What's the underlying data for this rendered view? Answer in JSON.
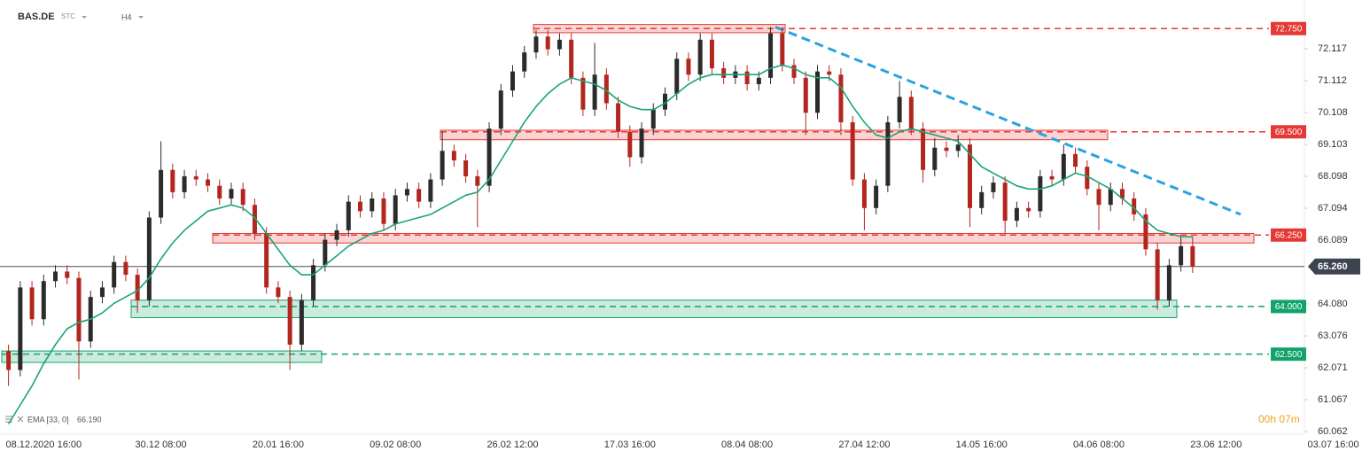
{
  "chart_data": {
    "type": "candlestick",
    "symbol": "BAS.DE",
    "market": "STC",
    "interval": "H4",
    "countdown": "00h 07m",
    "ylim": [
      59.98,
      73.65
    ],
    "yticks": [
      72.117,
      71.112,
      70.108,
      69.103,
      68.098,
      67.094,
      66.089,
      {
        "value": 64.08,
        "label": "64.080"
      },
      63.076,
      62.071,
      61.067,
      60.062
    ],
    "categories": [
      null,
      null,
      null,
      "08.12.2020 16:00",
      null,
      null,
      null,
      null,
      null,
      null,
      null,
      null,
      null,
      "30.12 08:00",
      null,
      null,
      null,
      null,
      null,
      null,
      null,
      null,
      null,
      "20.01 16:00",
      null,
      null,
      null,
      null,
      null,
      null,
      null,
      null,
      null,
      "09.02 08:00",
      null,
      null,
      null,
      null,
      null,
      null,
      null,
      null,
      null,
      "26.02 12:00",
      null,
      null,
      null,
      null,
      null,
      null,
      null,
      null,
      null,
      "17.03 16:00",
      null,
      null,
      null,
      null,
      null,
      null,
      null,
      null,
      null,
      "08.04 08:00",
      null,
      null,
      null,
      null,
      null,
      null,
      null,
      null,
      null,
      "27.04 12:00",
      null,
      null,
      null,
      null,
      null,
      null,
      null,
      null,
      null,
      "14.05 16:00",
      null,
      null,
      null,
      null,
      null,
      null,
      null,
      null,
      null,
      "04.06 08:00",
      null,
      null,
      null,
      null,
      null,
      null,
      null,
      null,
      null,
      "23.06 12:00",
      null,
      null,
      null,
      null,
      null,
      null,
      null,
      null,
      null,
      "03.07 16:00"
    ],
    "up_color": "#2b2b2b",
    "down_color": "#b3261e",
    "open": [
      62.6,
      62.0,
      64.6,
      63.6,
      64.8,
      65.1,
      64.9,
      62.9,
      64.3,
      64.6,
      65.4,
      65.0,
      64.2,
      66.8,
      68.3,
      67.6,
      68.1,
      68.0,
      67.8,
      67.4,
      67.7,
      67.2,
      66.3,
      64.6,
      64.3,
      62.8,
      64.2,
      65.3,
      66.1,
      66.4,
      67.3,
      67.0,
      67.4,
      66.6,
      67.5,
      67.7,
      67.3,
      68.0,
      68.9,
      68.6,
      68.1,
      67.8,
      69.6,
      70.8,
      71.4,
      72.0,
      72.5,
      72.1,
      72.4,
      71.2,
      70.2,
      71.3,
      70.4,
      69.5,
      68.7,
      69.6,
      70.2,
      70.7,
      71.8,
      71.3,
      72.4,
      71.5,
      71.2,
      71.4,
      71.0,
      71.2,
      72.6,
      71.6,
      71.2,
      70.1,
      71.4,
      71.3,
      69.8,
      68.0,
      67.1,
      67.8,
      69.8,
      70.6,
      69.6,
      68.3,
      69.0,
      68.9,
      69.1,
      67.1,
      67.6,
      67.9,
      66.7,
      67.1,
      67.0,
      68.1,
      68.0,
      68.8,
      68.4,
      67.7,
      67.2,
      67.7,
      67.4,
      66.9,
      65.8,
      64.2,
      65.3,
      65.9,
      null,
      null,
      null,
      null,
      null,
      null,
      null,
      null,
      null,
      null,
      null,
      null
    ],
    "high": [
      62.8,
      64.8,
      64.8,
      65.0,
      65.3,
      65.3,
      65.1,
      64.5,
      64.8,
      65.6,
      65.6,
      65.2,
      67.0,
      69.2,
      68.5,
      68.3,
      68.3,
      68.2,
      68.0,
      67.9,
      67.9,
      67.4,
      66.5,
      64.8,
      64.5,
      64.4,
      65.5,
      66.3,
      66.6,
      67.5,
      67.5,
      67.6,
      67.6,
      67.7,
      67.9,
      67.9,
      68.2,
      69.5,
      69.1,
      68.8,
      68.3,
      69.8,
      71.0,
      71.6,
      72.2,
      72.7,
      72.7,
      72.6,
      72.6,
      71.4,
      72.3,
      71.5,
      70.6,
      69.7,
      69.8,
      70.4,
      70.9,
      72.0,
      72.0,
      72.6,
      72.6,
      71.7,
      71.6,
      71.6,
      71.4,
      72.8,
      72.8,
      71.8,
      71.4,
      71.6,
      71.6,
      71.5,
      70.0,
      68.2,
      68.0,
      70.0,
      71.1,
      70.8,
      69.8,
      69.3,
      69.2,
      69.4,
      69.3,
      67.8,
      68.1,
      68.1,
      67.3,
      67.3,
      68.3,
      68.3,
      69.1,
      69.0,
      68.6,
      67.9,
      67.9,
      67.9,
      67.6,
      67.1,
      66.0,
      65.5,
      66.2,
      66.2,
      null,
      null,
      null,
      null,
      null,
      null,
      null,
      null,
      null,
      null,
      null,
      null
    ],
    "low": [
      61.5,
      61.8,
      63.4,
      63.4,
      64.6,
      64.7,
      61.7,
      62.7,
      64.1,
      64.4,
      64.8,
      63.8,
      64.0,
      66.6,
      67.4,
      67.4,
      67.8,
      67.6,
      67.2,
      67.2,
      67.0,
      66.1,
      64.4,
      64.1,
      62.0,
      62.6,
      64.0,
      65.1,
      65.9,
      66.2,
      66.8,
      66.8,
      66.4,
      66.4,
      67.3,
      67.1,
      67.1,
      67.8,
      68.4,
      67.9,
      66.5,
      67.6,
      69.4,
      70.6,
      71.2,
      71.8,
      71.9,
      71.9,
      71.0,
      70.0,
      70.0,
      70.2,
      69.3,
      68.4,
      68.5,
      69.4,
      70.0,
      70.5,
      71.1,
      71.1,
      71.3,
      71.0,
      71.0,
      70.8,
      70.8,
      71.0,
      71.4,
      71.0,
      69.4,
      69.9,
      71.1,
      69.4,
      67.8,
      66.4,
      66.9,
      67.6,
      69.6,
      69.4,
      67.9,
      68.1,
      68.7,
      68.7,
      66.5,
      66.9,
      67.4,
      66.3,
      66.5,
      66.8,
      66.8,
      67.8,
      67.8,
      68.2,
      67.5,
      66.4,
      67.0,
      67.2,
      66.7,
      65.6,
      63.9,
      64.0,
      65.1,
      65.06,
      null,
      null,
      null,
      null,
      null,
      null,
      null,
      null,
      null,
      null,
      null,
      null
    ],
    "close": [
      62.0,
      64.6,
      63.6,
      64.8,
      65.1,
      64.9,
      62.9,
      64.3,
      64.6,
      65.4,
      65.0,
      64.2,
      66.8,
      68.3,
      67.6,
      68.1,
      68.0,
      67.8,
      67.4,
      67.7,
      67.2,
      66.3,
      64.6,
      64.3,
      62.8,
      64.2,
      65.3,
      66.1,
      66.4,
      67.3,
      67.0,
      67.4,
      66.6,
      67.5,
      67.7,
      67.3,
      68.0,
      68.9,
      68.6,
      68.1,
      67.8,
      69.6,
      70.8,
      71.4,
      72.0,
      72.5,
      72.1,
      72.4,
      71.2,
      70.2,
      71.3,
      70.4,
      69.5,
      68.7,
      69.6,
      70.2,
      70.7,
      71.8,
      71.3,
      72.4,
      71.5,
      71.2,
      71.4,
      71.0,
      71.2,
      72.6,
      71.6,
      71.2,
      70.1,
      71.4,
      71.3,
      69.8,
      68.0,
      67.1,
      67.8,
      69.8,
      70.6,
      69.6,
      68.3,
      69.0,
      68.9,
      69.1,
      67.1,
      67.6,
      67.9,
      66.7,
      67.1,
      67.0,
      68.1,
      68.0,
      68.8,
      68.4,
      67.7,
      67.2,
      67.7,
      67.4,
      66.9,
      65.8,
      64.2,
      65.3,
      65.9,
      65.26,
      null,
      null,
      null,
      null,
      null,
      null,
      null,
      null,
      null,
      null,
      null,
      null
    ],
    "ema": {
      "name": "EMA [33, 0]",
      "value": 66.19,
      "value_label": "66.190",
      "color": "#1aa37a",
      "values": [
        60.3,
        60.9,
        61.5,
        62.2,
        62.8,
        63.3,
        63.5,
        63.6,
        63.8,
        64.1,
        64.3,
        64.5,
        64.9,
        65.5,
        66.0,
        66.4,
        66.7,
        67.0,
        67.1,
        67.2,
        67.1,
        66.8,
        66.3,
        65.8,
        65.3,
        65.0,
        65.0,
        65.3,
        65.6,
        65.9,
        66.1,
        66.3,
        66.4,
        66.6,
        66.7,
        66.8,
        66.9,
        67.1,
        67.3,
        67.5,
        67.6,
        68.0,
        68.6,
        69.2,
        69.8,
        70.3,
        70.7,
        71.0,
        71.2,
        71.1,
        71.0,
        70.8,
        70.5,
        70.3,
        70.2,
        70.2,
        70.4,
        70.7,
        71.0,
        71.2,
        71.3,
        71.3,
        71.3,
        71.3,
        71.3,
        71.5,
        71.6,
        71.5,
        71.3,
        71.2,
        71.2,
        70.9,
        70.3,
        69.8,
        69.4,
        69.3,
        69.5,
        69.6,
        69.5,
        69.4,
        69.3,
        69.2,
        68.8,
        68.4,
        68.2,
        68.0,
        67.8,
        67.7,
        67.7,
        67.8,
        68.0,
        68.2,
        68.1,
        67.9,
        67.7,
        67.4,
        67.1,
        66.7,
        66.4,
        66.3,
        66.2,
        66.19,
        null,
        null,
        null,
        null,
        null,
        null,
        null,
        null,
        null,
        null,
        null,
        null
      ]
    },
    "levels": [
      {
        "value": 72.75,
        "label": "72.750",
        "color": "#e53935"
      },
      {
        "value": 69.5,
        "label": "69.500",
        "color": "#e53935"
      },
      {
        "value": 66.25,
        "label": "66.250",
        "color": "#e53935"
      },
      {
        "value": 64.0,
        "label": "64.000",
        "color": "#12a36b"
      },
      {
        "value": 62.5,
        "label": "62.500",
        "color": "#12a36b"
      }
    ],
    "zones": [
      {
        "low": 72.62,
        "high": 72.88,
        "color": "#e53935"
      },
      {
        "low": 69.25,
        "high": 69.55,
        "color": "#e53935"
      },
      {
        "low": 66.0,
        "high": 66.3,
        "color": "#e53935"
      },
      {
        "low": 63.65,
        "high": 64.2,
        "color": "#12a36b"
      },
      {
        "low": 62.24,
        "high": 62.6,
        "color": "#12a36b"
      }
    ],
    "trendline": {
      "color": "#29a3e0",
      "values": [
        72.8,
        66.9
      ]
    },
    "last_price": {
      "value": 65.26,
      "label": "65.260"
    }
  }
}
